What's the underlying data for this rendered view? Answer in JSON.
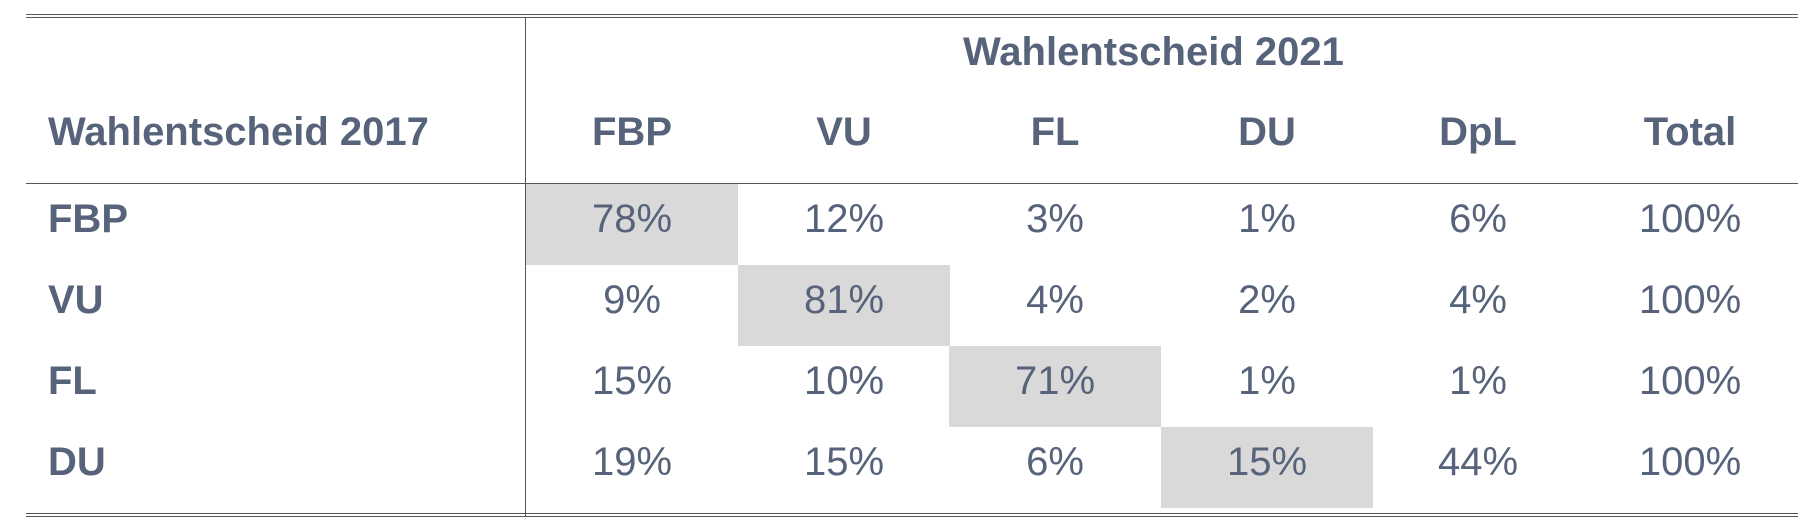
{
  "chart_data": {
    "type": "table",
    "column_group_label": "Wahlentscheid 2021",
    "row_header_label": "Wahlentscheid 2017",
    "columns": [
      "FBP",
      "VU",
      "FL",
      "DU",
      "DpL",
      "Total"
    ],
    "rows": [
      {
        "label": "FBP",
        "values": [
          "78%",
          "12%",
          "3%",
          "1%",
          "6%",
          "100%"
        ]
      },
      {
        "label": "VU",
        "values": [
          "9%",
          "81%",
          "4%",
          "2%",
          "4%",
          "100%"
        ]
      },
      {
        "label": "FL",
        "values": [
          "15%",
          "10%",
          "71%",
          "1%",
          "1%",
          "100%"
        ]
      },
      {
        "label": "DU",
        "values": [
          "19%",
          "15%",
          "6%",
          "15%",
          "44%",
          "100%"
        ]
      }
    ],
    "highlight_color": "#d9d9d9",
    "text_color": "#56637a"
  }
}
